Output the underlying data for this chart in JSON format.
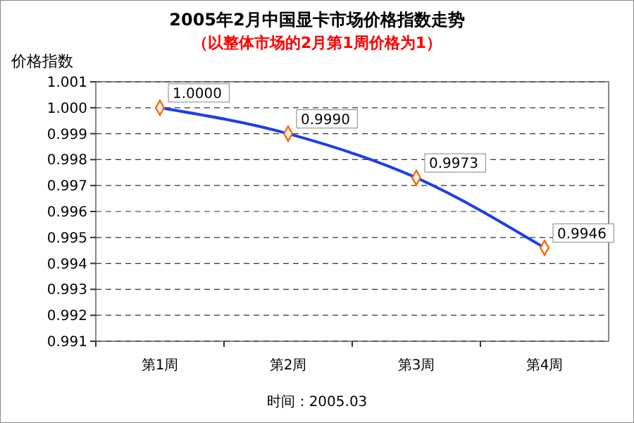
{
  "chart_data": {
    "type": "line",
    "title": "2005年2月中国显卡市场价格指数走势",
    "subtitle": "（以整体市场的2月第1周价格为1）",
    "ylabel": "价格指数",
    "categories": [
      "第1周",
      "第2周",
      "第3周",
      "第4周"
    ],
    "series": [
      {
        "color": "#1f3fe8",
        "values": [
          1.0,
          0.999,
          0.9973,
          0.9946
        ],
        "value_labels": [
          "1.0000",
          "0.9990",
          "0.9973",
          "0.9946"
        ]
      }
    ],
    "ylim": [
      0.991,
      1.001
    ],
    "yticks": [
      {
        "value": 0.991,
        "label": "0.991"
      },
      {
        "value": 0.992,
        "label": "0.992"
      },
      {
        "value": 0.993,
        "label": "0.993"
      },
      {
        "value": 0.994,
        "label": "0.994"
      },
      {
        "value": 0.995,
        "label": "0.995"
      },
      {
        "value": 0.996,
        "label": "0.996"
      },
      {
        "value": 0.997,
        "label": "0.997"
      },
      {
        "value": 0.998,
        "label": "0.998"
      },
      {
        "value": 0.999,
        "label": "0.999"
      },
      {
        "value": 1.0,
        "label": "1.000"
      },
      {
        "value": 1.001,
        "label": "1.001"
      }
    ],
    "grid": "y",
    "marker": "diamond",
    "line_style": "solid",
    "annotations": [
      "时间：2005.03"
    ]
  }
}
